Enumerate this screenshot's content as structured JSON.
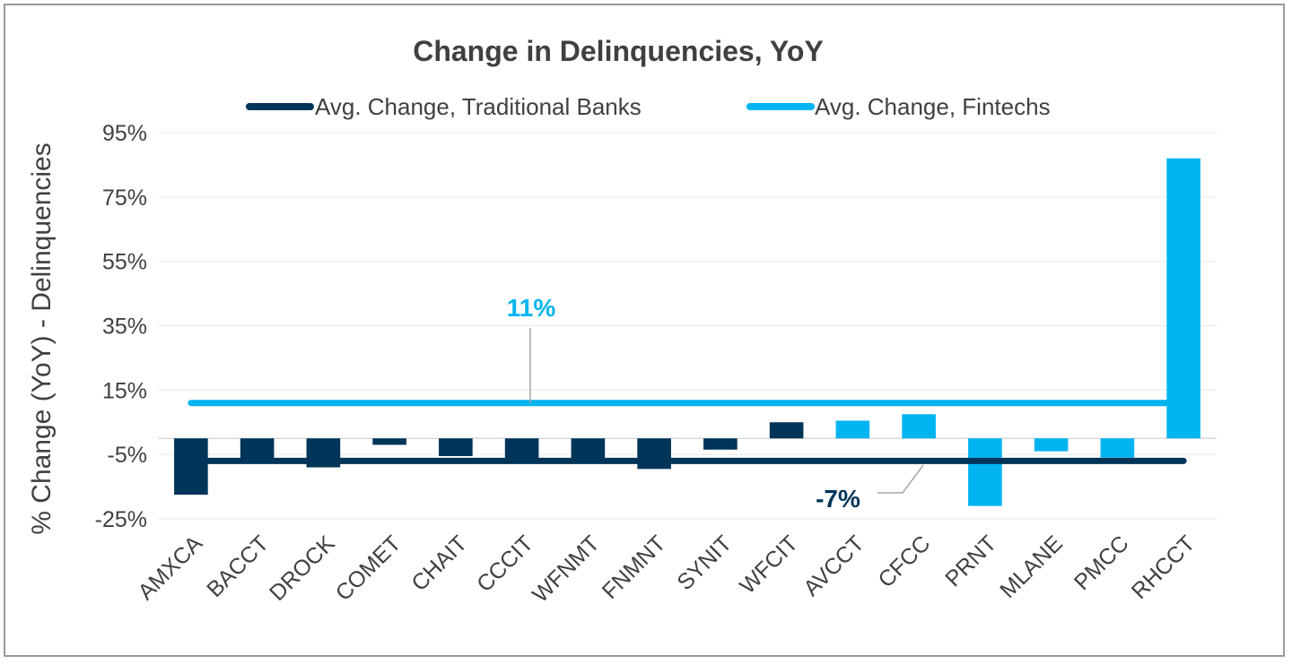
{
  "chart_data": {
    "type": "bar",
    "title": "Change in Delinquencies, YoY",
    "xlabel": "",
    "ylabel": "% Change (YoY) - Delinquencies",
    "categories": [
      "AMXCA",
      "BACCT",
      "DROCK",
      "COMET",
      "CHAIT",
      "CCCIT",
      "WFNMT",
      "FNMNT",
      "SYNIT",
      "WFCIT",
      "AVCCT",
      "CFCC",
      "PRNT",
      "MLANE",
      "PMCC",
      "RHCCT"
    ],
    "values": [
      -17.5,
      -7,
      -9,
      -2,
      -5.5,
      -7,
      -7,
      -9.5,
      -3.5,
      5,
      5.5,
      7.5,
      -21,
      -4,
      -6,
      87
    ],
    "bar_colors": [
      "#003459",
      "#003459",
      "#003459",
      "#003459",
      "#003459",
      "#003459",
      "#003459",
      "#003459",
      "#003459",
      "#003459",
      "#00b4f0",
      "#00b4f0",
      "#00b4f0",
      "#00b4f0",
      "#00b4f0",
      "#00b4f0"
    ],
    "ylim": [
      -25,
      95
    ],
    "yticks": [
      95,
      75,
      55,
      35,
      15,
      -5,
      -25
    ],
    "ytick_labels": [
      "95%",
      "75%",
      "55%",
      "35%",
      "15%",
      "-5%",
      "-25%"
    ],
    "grid": true,
    "legend_placement": "top",
    "reference_lines": [
      {
        "name": "Avg. Change, Traditional Banks",
        "value": -7,
        "label": "-7%",
        "color": "#003459"
      },
      {
        "name": "Avg. Change, Fintechs",
        "value": 11,
        "label": "11%",
        "color": "#00b4f0"
      }
    ]
  }
}
